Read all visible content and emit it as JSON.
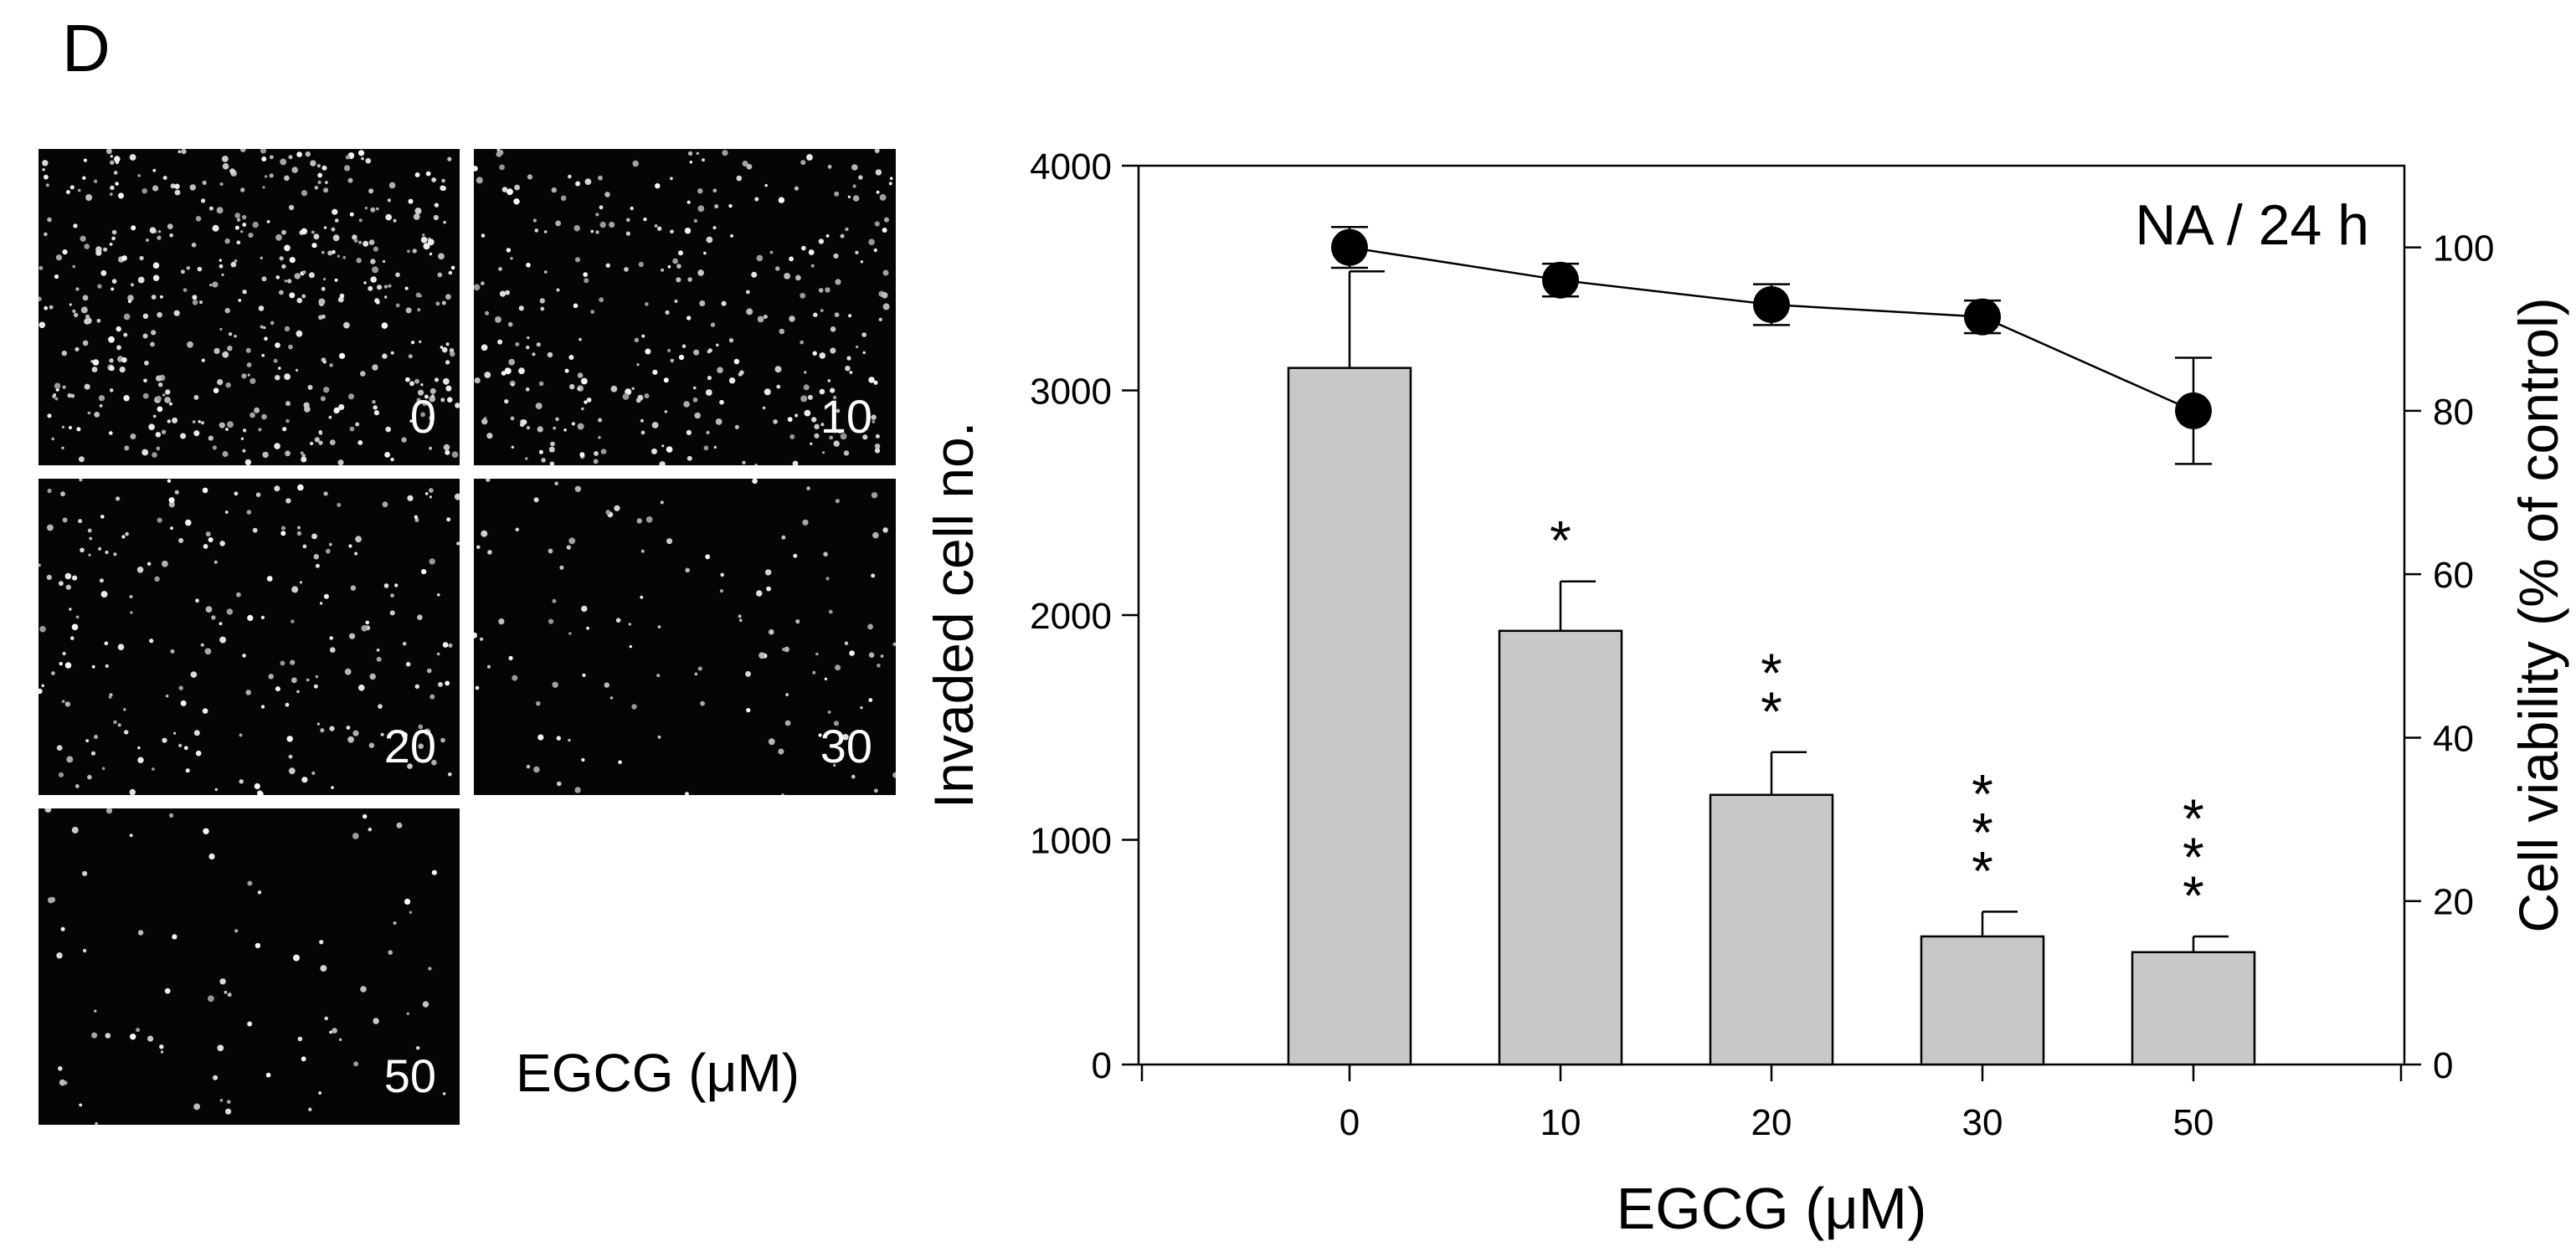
{
  "panel_label": "D",
  "micrographs": {
    "caption": "EGCG (μM)",
    "images": [
      {
        "label": "0",
        "density": 0.9
      },
      {
        "label": "10",
        "density": 0.62
      },
      {
        "label": "20",
        "density": 0.42
      },
      {
        "label": "30",
        "density": 0.22
      },
      {
        "label": "50",
        "density": 0.14
      }
    ]
  },
  "chart_data": {
    "type": "bar",
    "annotation": "NA / 24 h",
    "xlabel": "EGCG (μM)",
    "ylabel": "Invaded cell no.",
    "y2label": "Cell viability (% of control)",
    "categories": [
      "0",
      "10",
      "20",
      "30",
      "50"
    ],
    "ylim": [
      0,
      4000
    ],
    "yticks": [
      "0",
      "1000",
      "2000",
      "3000",
      "4000"
    ],
    "y2lim": [
      0,
      110
    ],
    "y2ticks": [
      "0",
      "20",
      "40",
      "60",
      "80",
      "100"
    ],
    "series": [
      {
        "axis": "left",
        "kind": "bar",
        "values": [
          3100,
          1930,
          1200,
          570,
          500
        ],
        "errors": [
          430,
          220,
          190,
          110,
          70
        ],
        "significance": [
          "",
          "*",
          "**",
          "***",
          "***"
        ],
        "color": "#c8c8c8"
      },
      {
        "axis": "right",
        "kind": "line",
        "values": [
          100,
          96,
          93,
          91.5,
          80
        ],
        "errors": [
          2.5,
          2,
          2.5,
          2,
          6.5
        ],
        "color": "#000000"
      }
    ],
    "grid": false
  }
}
